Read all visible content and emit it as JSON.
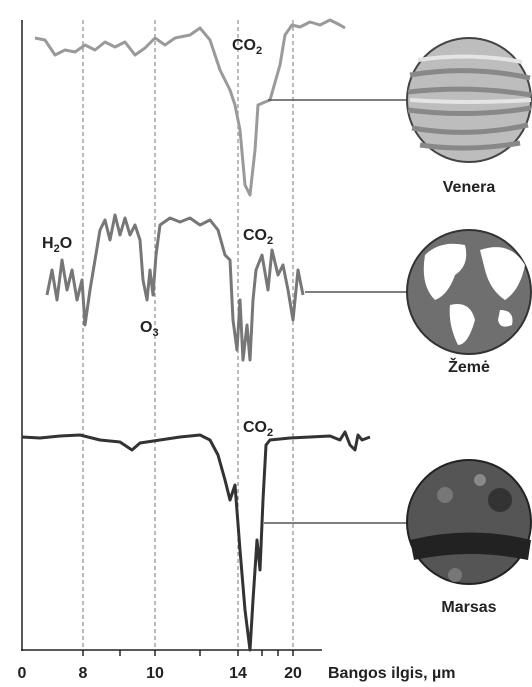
{
  "x_axis": {
    "label": "Bangos ilgis, µm",
    "ticks": [
      0,
      8,
      10,
      14,
      20
    ]
  },
  "panels": [
    {
      "planet": "Venera",
      "labels": [
        {
          "base": "CO",
          "sub": "2"
        }
      ]
    },
    {
      "planet": "Žemė",
      "labels": [
        {
          "base": "H",
          "sub": "2",
          "post": "O"
        },
        {
          "base": "O",
          "sub": "3"
        },
        {
          "base": "CO",
          "sub": "2"
        }
      ]
    },
    {
      "planet": "Marsas",
      "labels": [
        {
          "base": "CO",
          "sub": "2"
        }
      ]
    }
  ]
}
